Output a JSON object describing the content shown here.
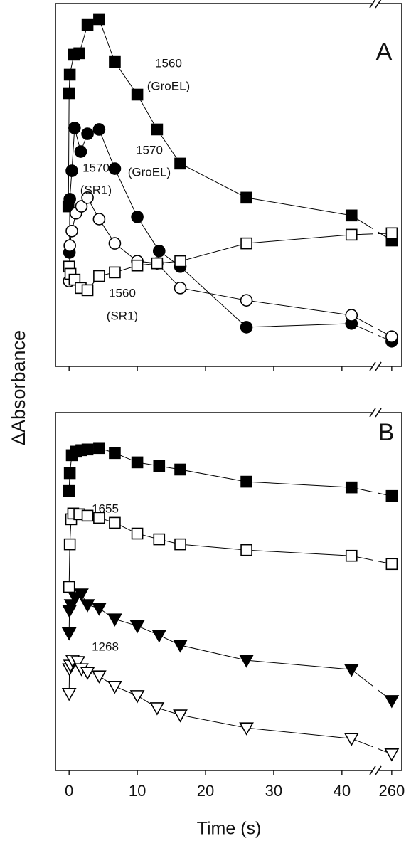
{
  "chart_data": [
    {
      "type": "line",
      "label": "A",
      "ylabel": "ΔAbsorbance",
      "xlim": [
        -2,
        261.5
      ],
      "xbreak": [
        44.5,
        258
      ],
      "ylim": [
        0,
        100
      ],
      "xticks": [
        0,
        10,
        20,
        30,
        40,
        260
      ],
      "xtick_labels": false,
      "series": [
        {
          "name": "1560 (GroEL)",
          "marker": "square",
          "filled": true,
          "color": "#000000",
          "x": [
            -0.1,
            0,
            0.1,
            0.7,
            1.5,
            2.7,
            4.4,
            6.7,
            10,
            12.9,
            16.3,
            26,
            41.4,
            260
          ],
          "values": [
            44.1,
            75.3,
            80.4,
            85.9,
            86.3,
            94.1,
            95.7,
            83.9,
            74.9,
            65.3,
            55.9,
            46.5,
            41.6,
            34.7
          ]
        },
        {
          "name": "1570 (GroEL)",
          "marker": "circle",
          "filled": true,
          "color": "#000000",
          "x": [
            0.05,
            0.1,
            0.4,
            0.8,
            1.7,
            2.7,
            4.4,
            6.7,
            10,
            13.2,
            16.3,
            26,
            41.4,
            260
          ],
          "values": [
            31.4,
            46.1,
            53.9,
            65.7,
            59.2,
            64.1,
            65.3,
            54.5,
            41.2,
            31.8,
            27.5,
            10.8,
            11.8,
            6.9
          ]
        },
        {
          "name": "1570 (SR1)",
          "marker": "circle",
          "filled": false,
          "color": "#000000",
          "x": [
            0,
            0.1,
            0.4,
            1.0,
            1.8,
            2.7,
            4.4,
            6.7,
            10,
            12.9,
            16.3,
            26,
            41.4,
            260
          ],
          "values": [
            23.5,
            33.3,
            37.3,
            42.2,
            44.1,
            46.5,
            40.6,
            33.9,
            29.0,
            28.4,
            21.6,
            18.2,
            14.1,
            8.2
          ]
        },
        {
          "name": "1560 (SR1)",
          "marker": "square",
          "filled": false,
          "color": "#000000",
          "x": [
            0,
            0.2,
            0.8,
            1.7,
            2.7,
            4.4,
            6.7,
            10,
            12.9,
            16.3,
            26,
            41.4,
            260
          ],
          "values": [
            27.5,
            25.5,
            23.9,
            21.6,
            21.0,
            24.9,
            25.9,
            27.8,
            28.4,
            29.0,
            33.9,
            36.3,
            36.7
          ]
        }
      ],
      "annotations": [
        [
          "1560",
          "(GroEL)"
        ],
        [
          "1570",
          "(GroEL)"
        ],
        [
          "1570",
          "(SR1)"
        ],
        [
          "1560",
          "(SR1)"
        ]
      ]
    },
    {
      "type": "line",
      "label": "B",
      "xlabel": "Time (s)",
      "xlim": [
        -2,
        261.5
      ],
      "xbreak": [
        44.5,
        258
      ],
      "ylim": [
        0,
        100
      ],
      "xticks": [
        0,
        10,
        20,
        30,
        40,
        260
      ],
      "xtick_labels": true,
      "series": [
        {
          "name": "1655 filled",
          "marker": "square",
          "filled": true,
          "color": "#000000",
          "x": [
            0,
            0.1,
            0.4,
            1.0,
            1.8,
            2.7,
            4.4,
            6.7,
            10,
            13.2,
            16.3,
            26,
            41.4,
            260
          ],
          "values": [
            78.1,
            83.1,
            88.1,
            89.1,
            89.5,
            89.7,
            90.1,
            88.7,
            86.1,
            85.1,
            84.1,
            80.7,
            79.1,
            76.7
          ]
        },
        {
          "name": "1655 open",
          "marker": "square",
          "filled": false,
          "color": "#000000",
          "x": [
            0,
            0.1,
            0.3,
            0.6,
            1.5,
            2.7,
            4.4,
            6.7,
            10,
            13.2,
            16.3,
            26,
            41.4,
            260
          ],
          "values": [
            51.3,
            63.2,
            70.2,
            71.8,
            71.6,
            71.2,
            70.6,
            69.2,
            66.2,
            64.6,
            63.2,
            61.6,
            60.0,
            57.7
          ]
        },
        {
          "name": "1268 filled",
          "marker": "triangle",
          "filled": true,
          "color": "#000000",
          "x": [
            0,
            0.05,
            0.3,
            0.9,
            1.8,
            2.7,
            4.4,
            6.7,
            10,
            13.2,
            16.3,
            26,
            41.4,
            260
          ],
          "values": [
            38.4,
            44.7,
            46.3,
            48.3,
            49.3,
            46.3,
            45.3,
            42.3,
            40.4,
            37.8,
            35.0,
            30.8,
            28.2,
            19.5
          ]
        },
        {
          "name": "1268 open",
          "marker": "triangle",
          "filled": false,
          "color": "#000000",
          "x": [
            0,
            0.05,
            0.2,
            0.5,
            1.3,
            1.8,
            2.7,
            4.4,
            6.7,
            10,
            12.9,
            16.3,
            26,
            41.4,
            260
          ],
          "values": [
            21.5,
            28.4,
            29.4,
            30.8,
            30.4,
            28.4,
            27.4,
            26.4,
            23.5,
            20.9,
            17.5,
            15.5,
            11.9,
            8.9,
            4.6
          ]
        }
      ],
      "annotations": [
        [
          "1655"
        ],
        [
          "1268"
        ]
      ]
    }
  ]
}
